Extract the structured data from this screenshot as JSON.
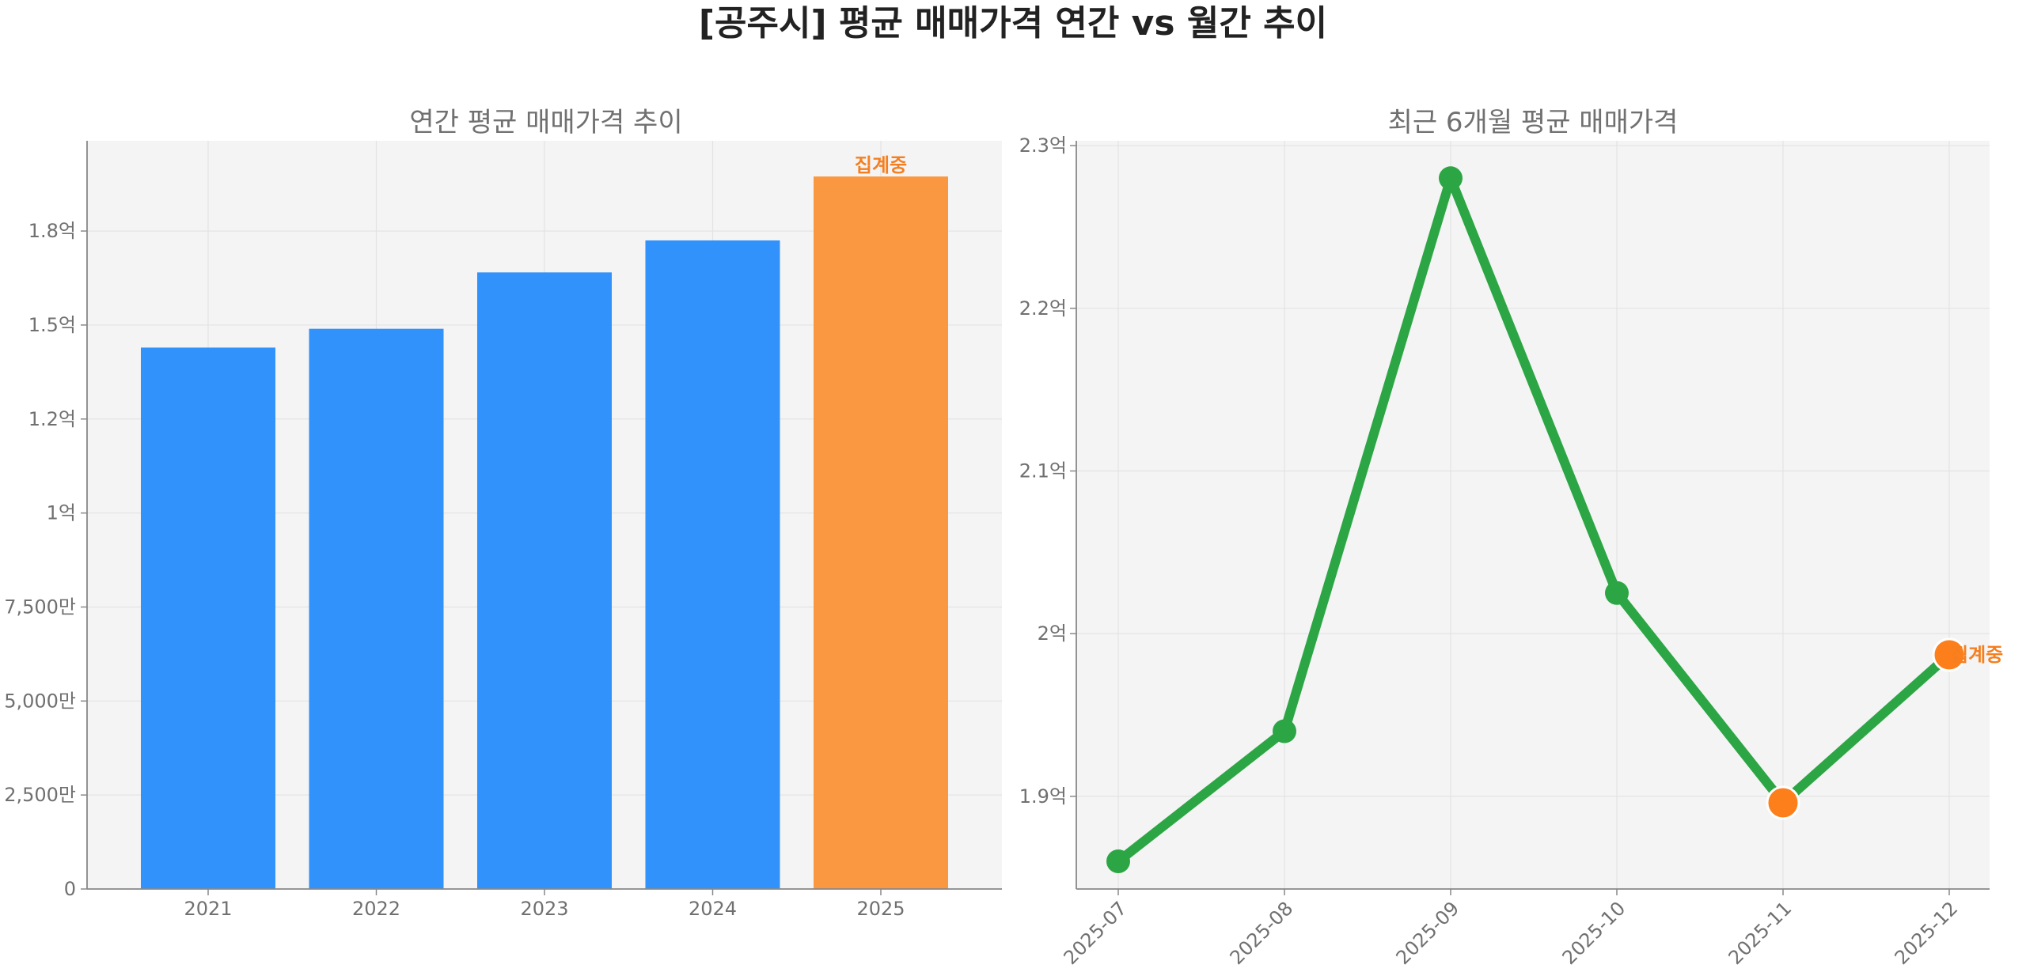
{
  "suptitle": "[공주시] 평균 매매가격 연간 vs 월간 추이",
  "colors": {
    "bar": "#3192fb",
    "bar_highlight": "#f99840",
    "line": "#2ca644",
    "marker_highlight": "#fd7f1b",
    "annotation": "#f57f20",
    "panel_bg": "#f4f4f4"
  },
  "chart_data": [
    {
      "type": "bar",
      "title": "연간 평균 매매가격 추이",
      "categories": [
        "2021",
        "2022",
        "2023",
        "2024",
        "2025"
      ],
      "values": [
        144000000,
        149000000,
        164000000,
        172500000,
        189500000
      ],
      "highlight_index": 4,
      "annotation": "집계중",
      "ylim": [
        0,
        199000000
      ],
      "yticks": [
        0,
        25000000,
        50000000,
        75000000,
        100000000,
        125000000,
        150000000,
        175000000
      ],
      "ytick_labels": [
        "0",
        "2,500만",
        "5,000만",
        "7,500만",
        "1억",
        "1.2억",
        "1.5억",
        "1.8억"
      ],
      "grid": true
    },
    {
      "type": "line",
      "title": "최근 6개월 평균 매매가격",
      "categories": [
        "2025-07",
        "2025-08",
        "2025-09",
        "2025-10",
        "2025-11",
        "2025-12"
      ],
      "values": [
        186000000,
        194000000,
        228000000,
        202500000,
        189600000,
        198700000
      ],
      "highlight_indices": [
        4,
        5
      ],
      "annotation": "집계중",
      "annotation_index": 5,
      "ylim": [
        184300000,
        230300000
      ],
      "yticks": [
        190000000,
        200000000,
        210000000,
        220000000,
        230000000
      ],
      "ytick_labels": [
        "1.9억",
        "2억",
        "2.1억",
        "2.2억",
        "2.3억"
      ],
      "grid": true
    }
  ]
}
